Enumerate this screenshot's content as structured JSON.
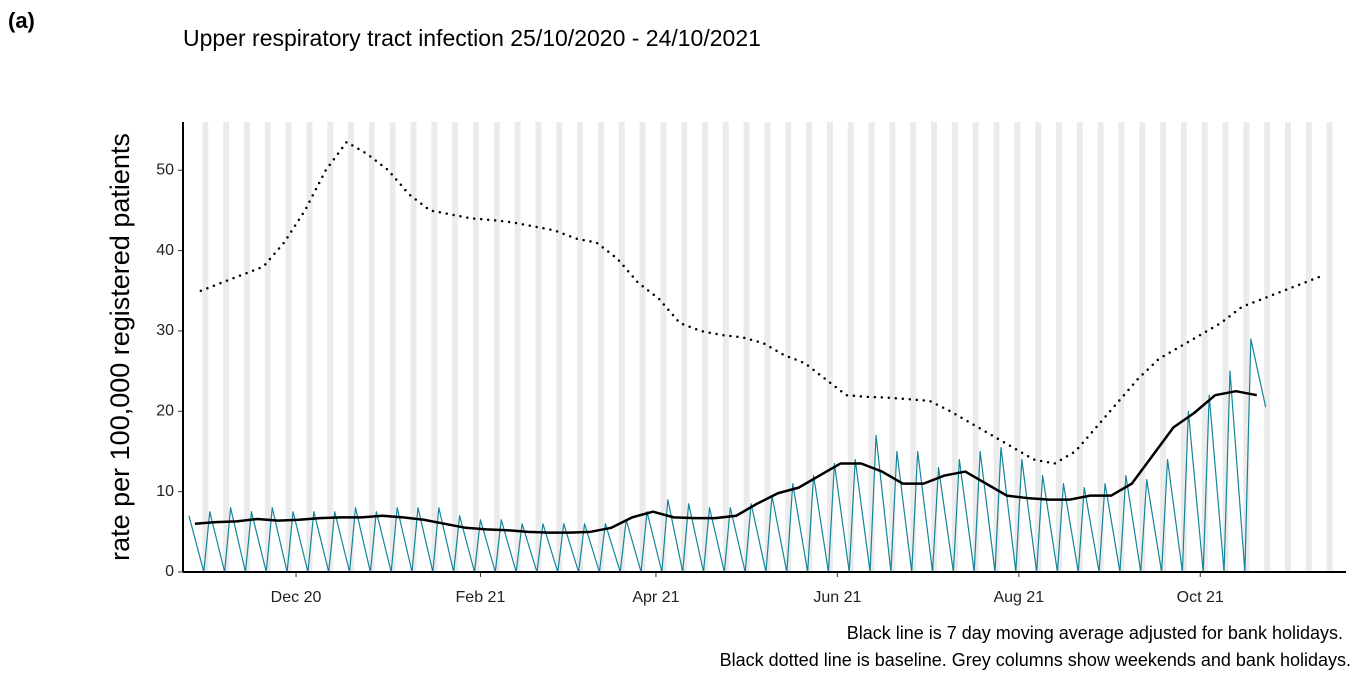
{
  "panel_label": "(a)",
  "chart_data": {
    "type": "line",
    "title": "Upper respiratory tract infection 25/10/2020 - 24/10/2021",
    "y_label": "rate per 100,000 registered patients",
    "notes": [
      "Black line is 7 day moving average adjusted for bank holidays.",
      "Black dotted line is baseline. Grey columns show weekends and bank holidays."
    ],
    "xlim": [
      -1,
      390
    ],
    "xticks": [
      {
        "value": 37,
        "label": "Dec 20"
      },
      {
        "value": 99,
        "label": "Feb 21"
      },
      {
        "value": 158,
        "label": "Apr 21"
      },
      {
        "value": 219,
        "label": "Jun 21"
      },
      {
        "value": 280,
        "label": "Aug 21"
      },
      {
        "value": 341,
        "label": "Oct 21"
      }
    ],
    "ylim": [
      0,
      56
    ],
    "yticks": [
      0,
      10,
      20,
      30,
      40,
      50
    ],
    "series": [
      {
        "color": "#14859a",
        "line_style": "solid",
        "x": [
          1,
          6,
          8,
          13,
          15,
          20,
          22,
          27,
          29,
          34,
          36,
          41,
          43,
          48,
          50,
          55,
          57,
          62,
          64,
          69,
          71,
          76,
          78,
          83,
          85,
          90,
          92,
          97,
          99,
          104,
          106,
          111,
          113,
          118,
          120,
          125,
          127,
          132,
          134,
          139,
          141,
          146,
          148,
          153,
          155,
          160,
          162,
          167,
          169,
          174,
          176,
          181,
          183,
          188,
          190,
          195,
          197,
          202,
          204,
          209,
          211,
          216,
          218,
          223,
          225,
          230,
          232,
          237,
          239,
          244,
          246,
          251,
          253,
          258,
          260,
          265,
          267,
          272,
          274,
          279,
          281,
          286,
          288,
          293,
          295,
          300,
          302,
          307,
          309,
          314,
          316,
          321,
          323,
          328,
          330,
          335,
          337,
          342,
          344,
          349,
          351,
          356,
          358,
          363
        ],
        "values": [
          7,
          0,
          7.5,
          0,
          8,
          0,
          7.5,
          0,
          8,
          0,
          7.5,
          0,
          7.5,
          0,
          7.5,
          0,
          8,
          0,
          7.5,
          0,
          8,
          0,
          8,
          0,
          8,
          0,
          7,
          0,
          6.5,
          0,
          6.5,
          0,
          6,
          0,
          6,
          0,
          6,
          0,
          6,
          0,
          6,
          0,
          6.5,
          0,
          7.5,
          0,
          9,
          0,
          8.5,
          0,
          8,
          0,
          8,
          0,
          8.5,
          0,
          9.5,
          0,
          11,
          0,
          12,
          0,
          13.5,
          0,
          14,
          0,
          17,
          0,
          15,
          0,
          15,
          0,
          13,
          0,
          14,
          0,
          15,
          0,
          15.5,
          0,
          14,
          0,
          12,
          0,
          11,
          0,
          10.5,
          0,
          11,
          0,
          12,
          0,
          11.5,
          0,
          14,
          0,
          20,
          0,
          22,
          0,
          25,
          0,
          29,
          20.5
        ]
      },
      {
        "color": "#000000",
        "line_style": "solid",
        "x": [
          3,
          10,
          17,
          24,
          31,
          38,
          45,
          52,
          59,
          66,
          73,
          80,
          87,
          94,
          101,
          108,
          115,
          122,
          129,
          136,
          143,
          150,
          157,
          164,
          171,
          178,
          185,
          192,
          199,
          206,
          213,
          220,
          227,
          234,
          241,
          248,
          255,
          262,
          269,
          276,
          283,
          290,
          297,
          304,
          311,
          318,
          325,
          332,
          339,
          346,
          353,
          360
        ],
        "values": [
          6,
          6.2,
          6.3,
          6.6,
          6.4,
          6.5,
          6.7,
          6.8,
          6.8,
          7,
          6.8,
          6.5,
          6,
          5.5,
          5.3,
          5.2,
          5,
          4.9,
          4.9,
          5,
          5.5,
          6.8,
          7.5,
          6.8,
          6.7,
          6.7,
          7,
          8.5,
          9.8,
          10.5,
          12,
          13.5,
          13.5,
          12.5,
          11,
          11,
          12,
          12.5,
          11,
          9.5,
          9.2,
          9,
          9,
          9.5,
          9.5,
          11,
          14.5,
          18,
          19.8,
          22,
          22.5,
          22
        ]
      },
      {
        "color": "#000000",
        "line_style": "dotted",
        "x": [
          5,
          12,
          19,
          26,
          33,
          40,
          47,
          54,
          61,
          68,
          75,
          82,
          89,
          96,
          103,
          110,
          117,
          124,
          131,
          138,
          145,
          152,
          159,
          166,
          173,
          180,
          187,
          194,
          201,
          208,
          215,
          222,
          229,
          236,
          243,
          250,
          257,
          264,
          271,
          278,
          285,
          292,
          299,
          306,
          313,
          320,
          327,
          334,
          341,
          348,
          355,
          362,
          369,
          376,
          383
        ],
        "values": [
          35,
          36,
          37,
          38,
          41,
          45,
          50,
          53.5,
          52,
          50,
          47,
          45,
          44.5,
          44,
          43.8,
          43.5,
          43,
          42.5,
          41.5,
          41,
          39,
          36,
          34,
          31,
          30,
          29.5,
          29.2,
          28.5,
          27,
          26,
          24,
          22,
          21.8,
          21.7,
          21.5,
          21.3,
          20,
          18.5,
          17,
          15.5,
          14,
          13.5,
          15,
          18,
          21,
          24,
          26.5,
          28,
          29.5,
          31,
          33,
          34,
          35,
          36,
          37
        ]
      }
    ],
    "weekend_shading": true,
    "shading_color": "#ebebeb"
  }
}
